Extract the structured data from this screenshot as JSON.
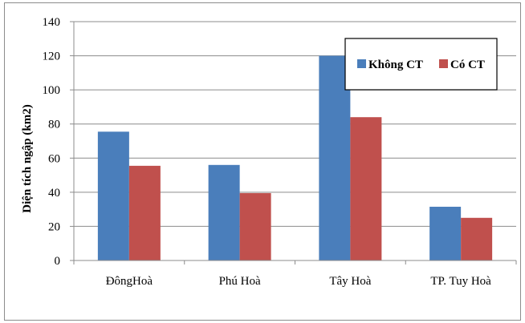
{
  "chart_data": {
    "type": "bar",
    "categories": [
      "ĐôngHoà",
      "Phú Hoà",
      "Tây Hoà",
      "TP. Tuy Hoà"
    ],
    "series": [
      {
        "name": "Không CT",
        "values": [
          75.5,
          56,
          120,
          31.5
        ],
        "color": "#4a7ebb"
      },
      {
        "name": "Có CT",
        "values": [
          55.5,
          39.5,
          84,
          25
        ],
        "color": "#c0504d"
      }
    ],
    "ylabel": "Diện tích ngập (km2)",
    "ylim": [
      0,
      140
    ],
    "yticks": [
      0,
      20,
      40,
      60,
      80,
      100,
      120,
      140
    ],
    "grid": true,
    "legend_position": "top-right"
  }
}
